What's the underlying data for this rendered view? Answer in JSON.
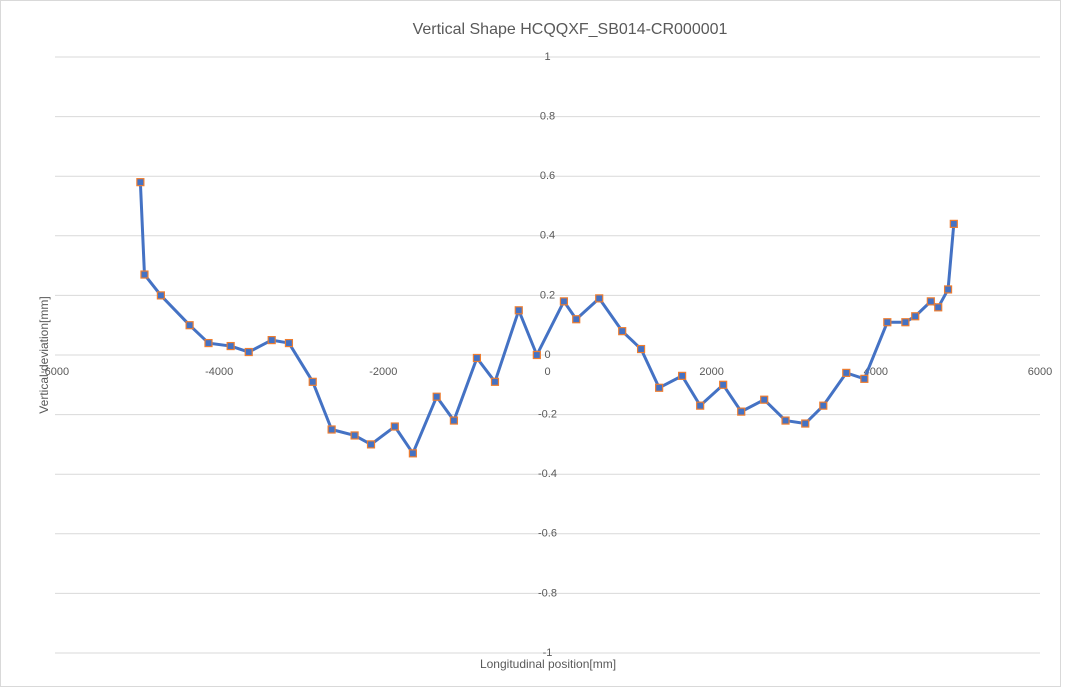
{
  "chart_data": {
    "type": "scatter",
    "title": "Vertical Shape    HCQQXF_SB014-CR000001",
    "x_label": "Longitudinal position[mm]",
    "y_label": "Vertical deviation[mm]",
    "series": [
      {
        "color": "#4472c4",
        "marker_color": "#ed7d31",
        "x": [
          -4960,
          -4910,
          -4710,
          -4360,
          -4130,
          -3860,
          -3640,
          -3360,
          -3150,
          -2860,
          -2630,
          -2350,
          -2150,
          -1860,
          -1640,
          -1350,
          -1140,
          -860,
          -640,
          -350,
          -130,
          200,
          350,
          630,
          910,
          1140,
          1360,
          1640,
          1860,
          2140,
          2360,
          2640,
          2900,
          3140,
          3360,
          3640,
          3860,
          4140,
          4360,
          4480,
          4670,
          4760,
          4880,
          4950
        ],
        "y": [
          0.58,
          0.27,
          0.2,
          0.1,
          0.04,
          0.03,
          0.01,
          0.05,
          0.04,
          -0.09,
          -0.25,
          -0.27,
          -0.3,
          -0.24,
          -0.33,
          -0.14,
          -0.22,
          -0.01,
          -0.09,
          0.15,
          0.0,
          0.18,
          0.12,
          0.19,
          0.08,
          0.02,
          -0.11,
          -0.07,
          -0.17,
          -0.1,
          -0.19,
          -0.15,
          -0.22,
          -0.23,
          -0.17,
          -0.06,
          -0.08,
          0.11,
          0.11,
          0.13,
          0.18,
          0.16,
          0.22,
          0.44
        ]
      }
    ],
    "xlim": [
      -6000,
      6000
    ],
    "xticks": [
      -6000,
      -4000,
      -2000,
      0,
      2000,
      4000,
      6000
    ],
    "ylim": [
      -1,
      1
    ],
    "yticks": [
      -1,
      -0.8,
      -0.6,
      -0.4,
      -0.2,
      0,
      0.2,
      0.4,
      0.6,
      0.8,
      1
    ],
    "grid": true
  }
}
